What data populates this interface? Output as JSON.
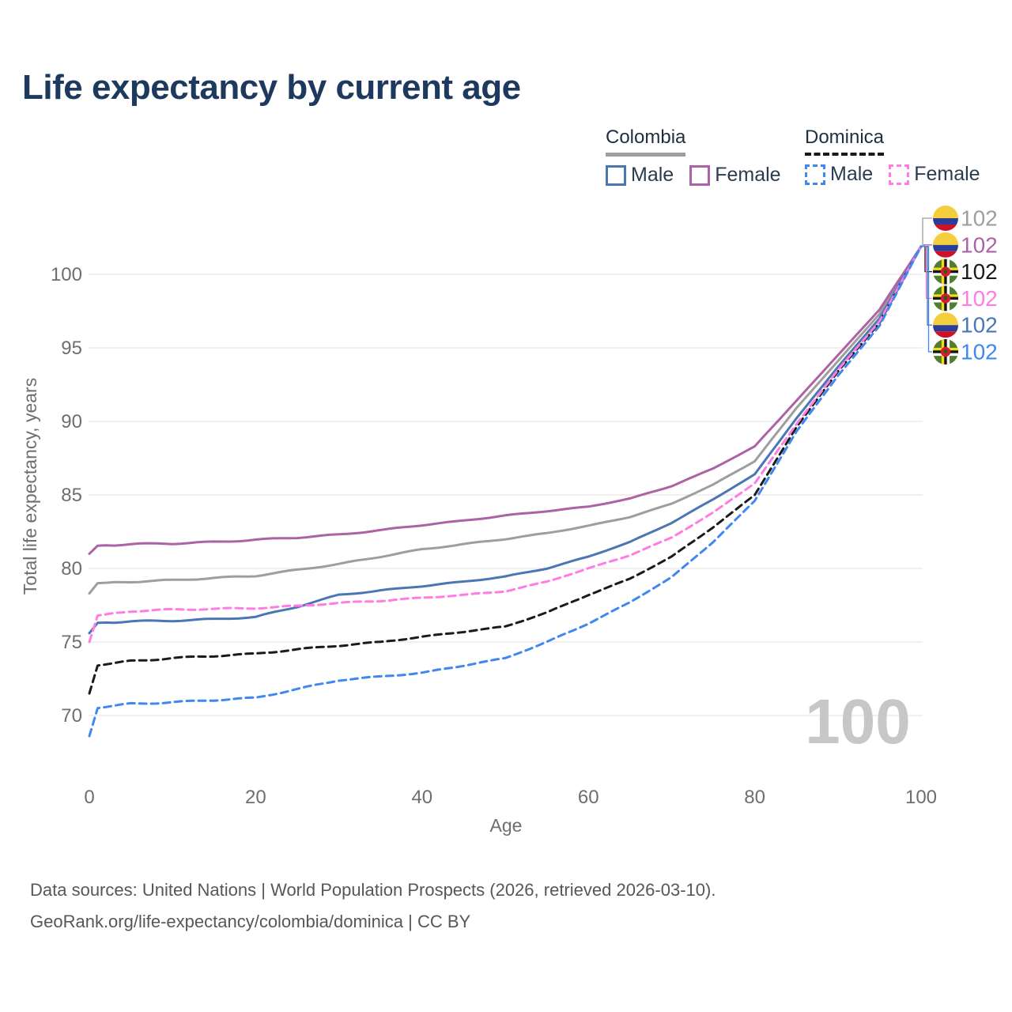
{
  "header": {
    "title": "Life expectancy by current age"
  },
  "legend": {
    "groups": [
      {
        "country": "Colombia",
        "line_style": "solid",
        "items": [
          {
            "label": "Male",
            "color": "#4a77b4"
          },
          {
            "label": "Female",
            "color": "#ae62a6"
          }
        ]
      },
      {
        "country": "Dominica",
        "line_style": "dashed",
        "items": [
          {
            "label": "Male",
            "color": "#4087f0"
          },
          {
            "label": "Female",
            "color": "#ff7ce3"
          }
        ]
      }
    ]
  },
  "chart_data": {
    "type": "line",
    "title": "Life expectancy by current age",
    "xlabel": "Age",
    "ylabel": "Total life expectancy, years",
    "xlim": [
      0,
      100
    ],
    "ylim": [
      68,
      103
    ],
    "xticks": [
      0,
      20,
      40,
      60,
      80,
      100
    ],
    "yticks": [
      70,
      75,
      80,
      85,
      90,
      95,
      100
    ],
    "grid": "horizontal-only",
    "legend_position": "top-right",
    "watermark": "100",
    "x": [
      0,
      1,
      5,
      10,
      15,
      20,
      25,
      30,
      35,
      40,
      45,
      50,
      55,
      60,
      65,
      70,
      75,
      80,
      85,
      90,
      95,
      100
    ],
    "series": [
      {
        "name": "Colombia",
        "gender": "both",
        "dash": false,
        "color": "#9e9e9e",
        "flag": "colombia",
        "end_label": "102",
        "values": [
          78.3,
          79.0,
          79.1,
          79.2,
          79.35,
          79.5,
          79.9,
          80.3,
          80.8,
          81.3,
          81.65,
          82.0,
          82.4,
          82.9,
          83.5,
          84.4,
          85.7,
          87.3,
          90.9,
          94.1,
          97.3,
          101.9
        ]
      },
      {
        "name": "Colombia Female",
        "gender": "female",
        "dash": false,
        "color": "#ae62a6",
        "flag": "colombia",
        "end_label": "102",
        "values": [
          81.0,
          81.55,
          81.65,
          81.7,
          81.8,
          81.95,
          82.1,
          82.3,
          82.6,
          82.95,
          83.25,
          83.6,
          83.9,
          84.2,
          84.75,
          85.6,
          86.8,
          88.3,
          91.4,
          94.5,
          97.6,
          101.9
        ]
      },
      {
        "name": "Dominica",
        "gender": "both",
        "dash": true,
        "color": "#1b1b1b",
        "flag": "dominica",
        "end_label": "102",
        "values": [
          71.5,
          73.4,
          73.7,
          73.9,
          74.05,
          74.2,
          74.5,
          74.75,
          75.0,
          75.35,
          75.7,
          76.05,
          77.0,
          78.2,
          79.3,
          80.8,
          82.8,
          85.0,
          89.6,
          93.4,
          96.7,
          101.9
        ]
      },
      {
        "name": "Dominica Female",
        "gender": "female",
        "dash": true,
        "color": "#ff7ce3",
        "flag": "dominica",
        "end_label": "102",
        "values": [
          75.0,
          76.8,
          77.1,
          77.2,
          77.25,
          77.3,
          77.45,
          77.65,
          77.8,
          78.0,
          78.2,
          78.45,
          79.1,
          80.0,
          80.9,
          82.1,
          83.8,
          85.8,
          89.8,
          93.5,
          96.8,
          101.9
        ]
      },
      {
        "name": "Colombia Male",
        "gender": "male",
        "dash": false,
        "color": "#4a77b4",
        "flag": "colombia",
        "end_label": "102",
        "values": [
          75.6,
          76.3,
          76.4,
          76.45,
          76.55,
          76.7,
          77.4,
          78.2,
          78.5,
          78.8,
          79.1,
          79.45,
          80.0,
          80.8,
          81.8,
          83.1,
          84.7,
          86.4,
          90.2,
          93.7,
          97.0,
          101.9
        ]
      },
      {
        "name": "Dominica Male",
        "gender": "male",
        "dash": true,
        "color": "#4087f0",
        "flag": "dominica",
        "end_label": "102",
        "values": [
          68.6,
          70.5,
          70.8,
          70.9,
          71.05,
          71.2,
          71.8,
          72.4,
          72.65,
          72.9,
          73.4,
          73.9,
          75.0,
          76.25,
          77.7,
          79.4,
          81.8,
          84.6,
          89.3,
          93.1,
          96.5,
          101.9
        ]
      }
    ],
    "flag_colors": {
      "colombia": {
        "yellow": "#F5CE3E",
        "blue": "#2B3D9B",
        "red": "#CE1126"
      },
      "dominica": {
        "green": "#4E7F2E",
        "yellow": "#F7D917",
        "black": "#141414",
        "white": "#FFFFFF",
        "red": "#D41C30",
        "parrot": "#2E5A1D"
      }
    },
    "styles": {
      "gridline_color": "#ececec",
      "tick_color": "#6e6e6e",
      "watermark_color": "#c7c7c7"
    }
  },
  "footer": {
    "line1": "Data sources: United Nations | World Population Prospects (2026, retrieved 2026-03-10).",
    "line2": "GeoRank.org/life-expectancy/colombia/dominica | CC BY"
  }
}
